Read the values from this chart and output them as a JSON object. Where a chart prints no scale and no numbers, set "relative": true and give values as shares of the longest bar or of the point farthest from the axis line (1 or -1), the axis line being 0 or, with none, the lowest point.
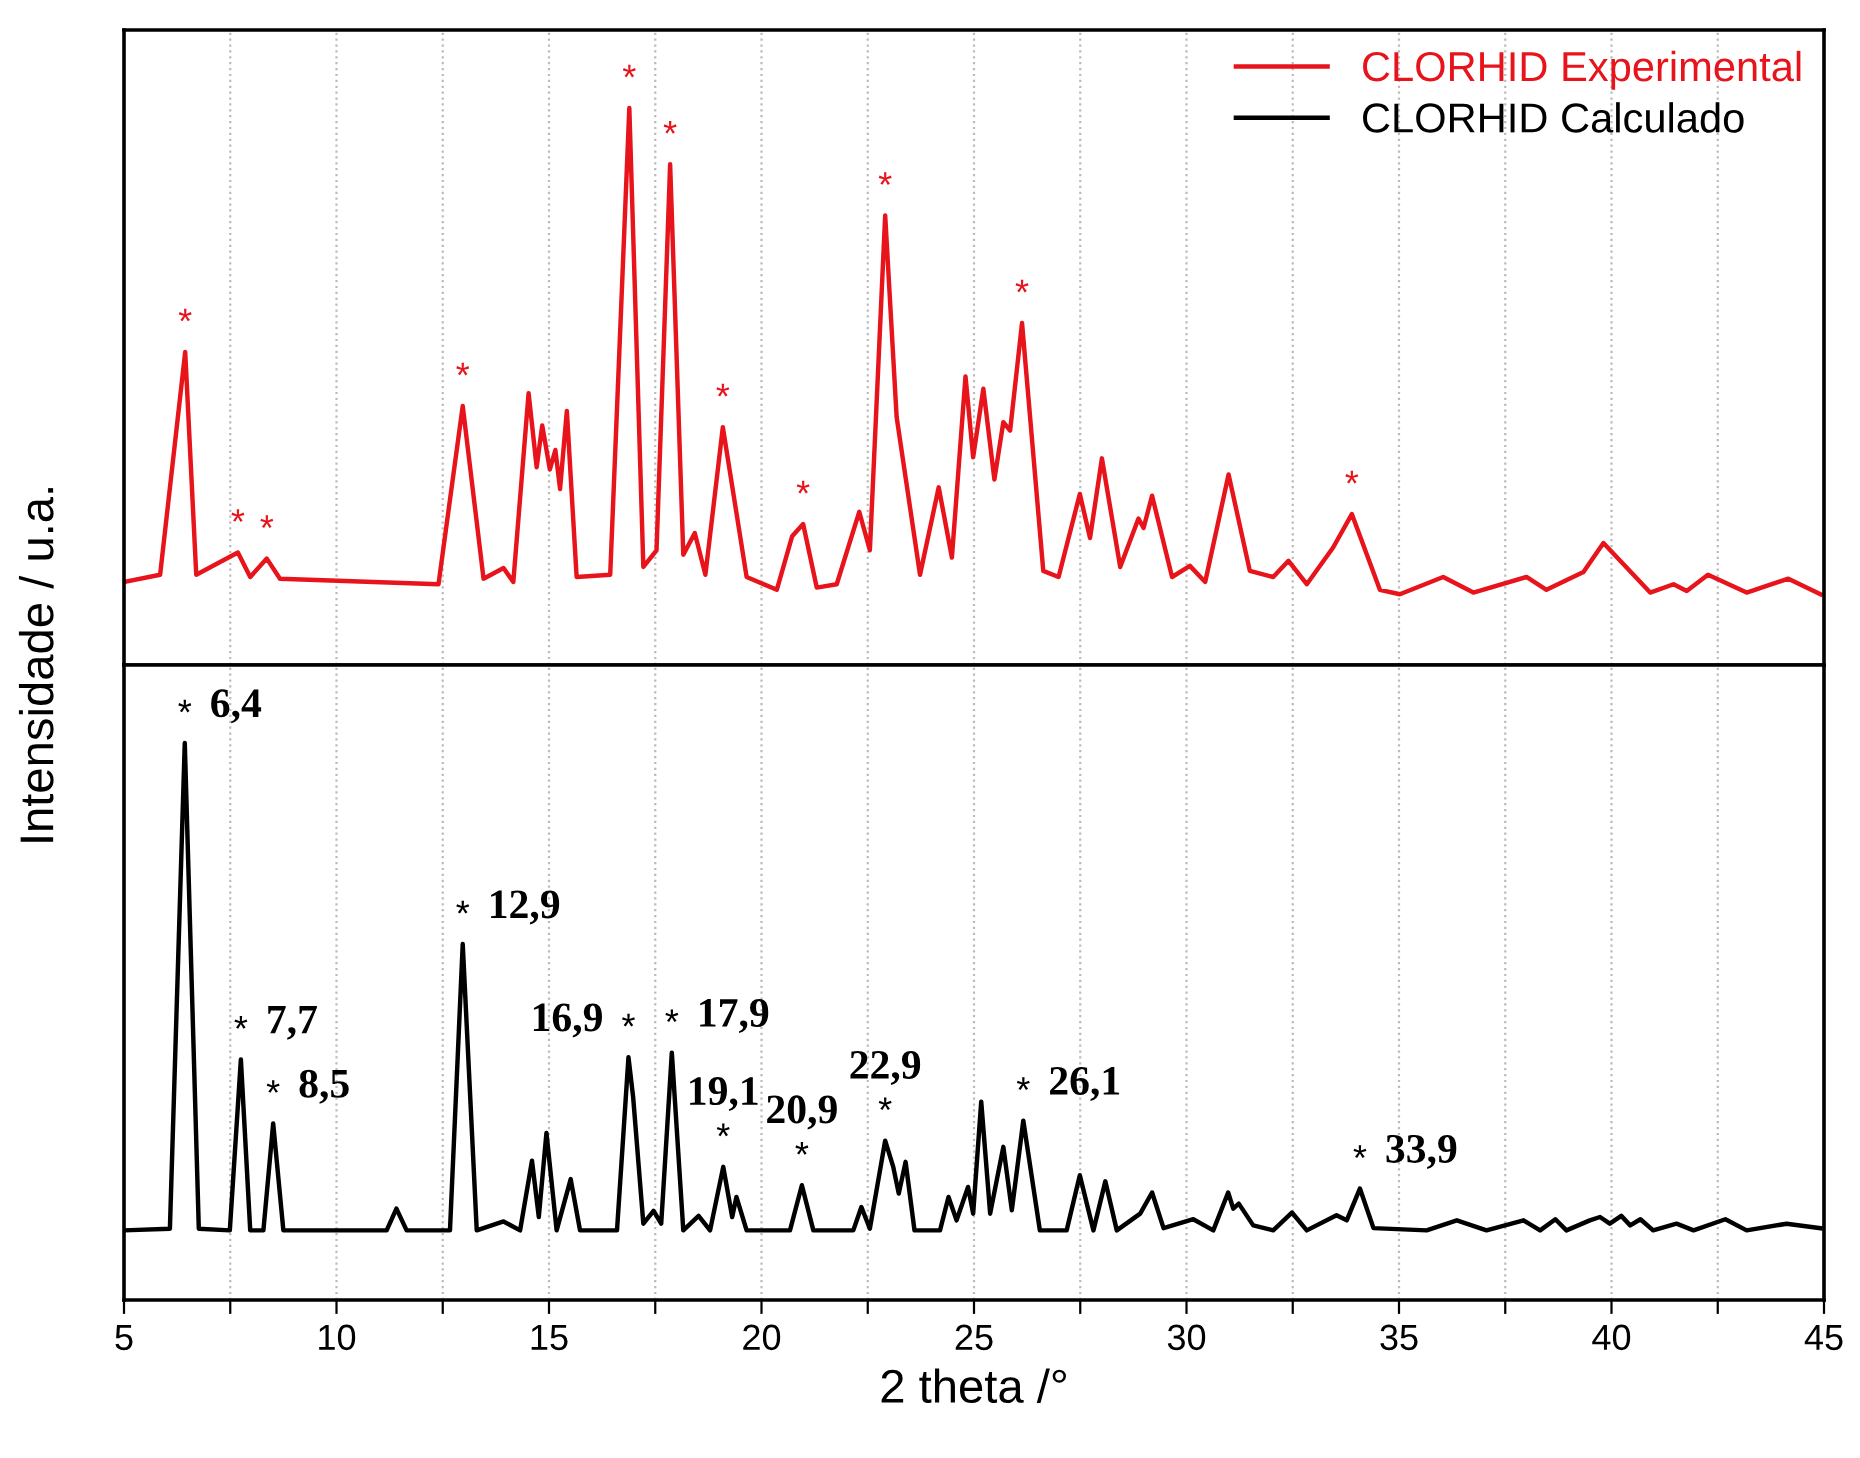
{
  "chart_data": [
    {
      "type": "line",
      "relative": true,
      "ylabel": "Intensidade / u.a.",
      "xlim": [
        5,
        45
      ],
      "xticks": [
        5,
        {
          "value": 7.5,
          "label": null
        },
        10,
        {
          "value": 12.5,
          "label": null
        },
        15,
        {
          "value": 17.5,
          "label": null
        },
        20,
        {
          "value": 22.5,
          "label": null
        },
        25,
        {
          "value": 27.5,
          "label": null
        },
        30,
        {
          "value": 32.5,
          "label": null
        },
        35,
        {
          "value": 37.5,
          "label": null
        },
        40,
        {
          "value": 42.5,
          "label": null
        },
        45
      ],
      "tick_labels": false,
      "grid": "x",
      "legend": "top right",
      "line_style": "solid",
      "marker": "none",
      "series": [
        {
          "name": "CLORHID Experimental",
          "color": "#e8141c",
          "x": [
            5,
            5.85,
            6.44,
            6.7,
            7.68,
            7.97,
            8.36,
            8.67,
            12.4,
            12.97,
            13.46,
            13.93,
            14.16,
            14.52,
            14.71,
            14.84,
            15.02,
            15.15,
            15.26,
            15.42,
            15.65,
            16.44,
            16.89,
            17.22,
            17.53,
            17.85,
            18.16,
            18.43,
            18.68,
            19.09,
            19.65,
            20.36,
            20.72,
            20.98,
            21.3,
            21.77,
            22.3,
            22.55,
            22.91,
            23.18,
            23.73,
            24.17,
            24.48,
            24.8,
            24.98,
            25.22,
            25.48,
            25.69,
            25.85,
            26.13,
            26.63,
            26.99,
            27.49,
            27.73,
            28.01,
            28.44,
            28.87,
            28.99,
            29.19,
            29.66,
            30.08,
            30.44,
            30.99,
            31.49,
            32.04,
            32.4,
            32.83,
            33.45,
            33.89,
            34.55,
            35.02,
            36.04,
            36.75,
            38.0,
            38.47,
            39.34,
            39.81,
            40.91,
            41.46,
            41.77,
            42.27,
            43.18,
            44.16,
            44.92
          ],
          "values": [
            0.149,
            0.162,
            0.562,
            0.162,
            0.202,
            0.158,
            0.191,
            0.155,
            0.145,
            0.465,
            0.155,
            0.174,
            0.149,
            0.488,
            0.355,
            0.43,
            0.351,
            0.386,
            0.316,
            0.456,
            0.158,
            0.162,
            1.0,
            0.176,
            0.206,
            0.899,
            0.198,
            0.237,
            0.162,
            0.427,
            0.158,
            0.135,
            0.231,
            0.253,
            0.139,
            0.145,
            0.275,
            0.206,
            0.807,
            0.445,
            0.162,
            0.319,
            0.193,
            0.518,
            0.373,
            0.496,
            0.333,
            0.436,
            0.421,
            0.614,
            0.169,
            0.158,
            0.307,
            0.228,
            0.371,
            0.176,
            0.263,
            0.246,
            0.304,
            0.158,
            0.178,
            0.149,
            0.342,
            0.169,
            0.158,
            0.187,
            0.145,
            0.211,
            0.271,
            0.135,
            0.127,
            0.158,
            0.13,
            0.158,
            0.135,
            0.167,
            0.219,
            0.13,
            0.145,
            0.133,
            0.162,
            0.13,
            0.155,
            0.127
          ]
        }
      ],
      "annotations": [
        {
          "text": "*",
          "x": 6.44,
          "y": 0.562
        },
        {
          "text": "*",
          "x": 7.68,
          "y": 0.202
        },
        {
          "text": "*",
          "x": 8.36,
          "y": 0.191
        },
        {
          "text": "*",
          "x": 12.97,
          "y": 0.465
        },
        {
          "text": "*",
          "x": 16.89,
          "y": 1.0
        },
        {
          "text": "*",
          "x": 17.85,
          "y": 0.899
        },
        {
          "text": "*",
          "x": 19.09,
          "y": 0.427
        },
        {
          "text": "*",
          "x": 20.98,
          "y": 0.253
        },
        {
          "text": "*",
          "x": 22.91,
          "y": 0.807
        },
        {
          "text": "*",
          "x": 26.13,
          "y": 0.614
        },
        {
          "text": "*",
          "x": 33.89,
          "y": 0.271
        }
      ]
    },
    {
      "type": "line",
      "relative": true,
      "xlabel": "2 theta /°",
      "xlim": [
        5,
        45
      ],
      "xticks": [
        5,
        {
          "value": 7.5,
          "label": null
        },
        10,
        {
          "value": 12.5,
          "label": null
        },
        15,
        {
          "value": 17.5,
          "label": null
        },
        20,
        {
          "value": 22.5,
          "label": null
        },
        25,
        {
          "value": 27.5,
          "label": null
        },
        30,
        {
          "value": 32.5,
          "label": null
        },
        35,
        {
          "value": 37.5,
          "label": null
        },
        40,
        {
          "value": 42.5,
          "label": null
        },
        45
      ],
      "tick_labels": "x",
      "grid": "x",
      "legend": "top right",
      "line_style": "solid",
      "marker": "none",
      "series": [
        {
          "name": "CLORHID Calculado",
          "color": "#000000",
          "x": [
            5,
            6.08,
            6.43,
            6.76,
            7.49,
            7.75,
            7.97,
            8.28,
            8.51,
            8.75,
            11.18,
            11.41,
            11.65,
            12.67,
            12.97,
            13.3,
            13.93,
            14.32,
            14.6,
            14.76,
            14.94,
            15.18,
            15.51,
            15.73,
            16.6,
            16.87,
            16.98,
            17.22,
            17.46,
            17.64,
            17.89,
            18.16,
            18.52,
            18.79,
            19.1,
            19.31,
            19.41,
            19.65,
            20.67,
            20.95,
            21.22,
            22.16,
            22.35,
            22.55,
            22.91,
            23.1,
            23.23,
            23.39,
            23.6,
            24.2,
            24.4,
            24.59,
            24.86,
            24.98,
            25.17,
            25.38,
            25.69,
            25.89,
            26.16,
            26.55,
            27.18,
            27.49,
            27.81,
            28.09,
            28.36,
            28.91,
            29.19,
            29.46,
            30.16,
            30.63,
            30.98,
            31.1,
            31.23,
            31.57,
            32.04,
            32.48,
            32.83,
            33.53,
            33.77,
            34.08,
            34.4,
            35.65,
            36.36,
            37.06,
            37.93,
            38.32,
            38.68,
            38.94,
            39.49,
            39.73,
            39.96,
            40.23,
            40.44,
            40.68,
            40.98,
            41.53,
            41.93,
            42.68,
            43.18,
            44.12,
            44.92
          ],
          "values": [
            0.125,
            0.128,
            1.0,
            0.128,
            0.125,
            0.432,
            0.125,
            0.125,
            0.317,
            0.125,
            0.125,
            0.164,
            0.125,
            0.125,
            0.639,
            0.125,
            0.141,
            0.125,
            0.25,
            0.149,
            0.3,
            0.125,
            0.217,
            0.125,
            0.125,
            0.436,
            0.364,
            0.137,
            0.16,
            0.137,
            0.444,
            0.125,
            0.151,
            0.125,
            0.239,
            0.149,
            0.185,
            0.125,
            0.125,
            0.206,
            0.125,
            0.125,
            0.167,
            0.128,
            0.286,
            0.239,
            0.191,
            0.248,
            0.125,
            0.125,
            0.185,
            0.143,
            0.203,
            0.155,
            0.356,
            0.155,
            0.275,
            0.161,
            0.322,
            0.125,
            0.125,
            0.224,
            0.125,
            0.213,
            0.125,
            0.155,
            0.193,
            0.129,
            0.145,
            0.125,
            0.193,
            0.164,
            0.173,
            0.134,
            0.125,
            0.157,
            0.125,
            0.152,
            0.143,
            0.2,
            0.129,
            0.125,
            0.143,
            0.125,
            0.143,
            0.125,
            0.145,
            0.125,
            0.143,
            0.149,
            0.137,
            0.151,
            0.134,
            0.145,
            0.125,
            0.137,
            0.125,
            0.145,
            0.125,
            0.137,
            0.129
          ]
        }
      ],
      "annotations": [
        {
          "text": "*",
          "x": 6.43,
          "y": 1.0
        },
        {
          "text": "6,4",
          "x": 6.43,
          "y": 1.0
        },
        {
          "text": "*",
          "x": 7.75,
          "y": 0.432
        },
        {
          "text": "7,7",
          "x": 7.75,
          "y": 0.432
        },
        {
          "text": "*",
          "x": 8.51,
          "y": 0.317
        },
        {
          "text": "8,5",
          "x": 8.51,
          "y": 0.317
        },
        {
          "text": "*",
          "x": 12.97,
          "y": 0.639
        },
        {
          "text": "12,9",
          "x": 12.97,
          "y": 0.639
        },
        {
          "text": "*",
          "x": 16.87,
          "y": 0.436
        },
        {
          "text": "16,9",
          "x": 16.87,
          "y": 0.436
        },
        {
          "text": "*",
          "x": 17.89,
          "y": 0.444
        },
        {
          "text": "17,9",
          "x": 17.89,
          "y": 0.444
        },
        {
          "text": "*",
          "x": 19.1,
          "y": 0.239
        },
        {
          "text": "19,1",
          "x": 19.1,
          "y": 0.239
        },
        {
          "text": "*",
          "x": 20.95,
          "y": 0.206
        },
        {
          "text": "20,9",
          "x": 20.95,
          "y": 0.206
        },
        {
          "text": "*",
          "x": 22.91,
          "y": 0.286
        },
        {
          "text": "22,9",
          "x": 22.91,
          "y": 0.286
        },
        {
          "text": "*",
          "x": 26.16,
          "y": 0.322
        },
        {
          "text": "26,1",
          "x": 26.16,
          "y": 0.322
        },
        {
          "text": "*",
          "x": 34.08,
          "y": 0.2
        },
        {
          "text": "33,9",
          "x": 34.08,
          "y": 0.2
        }
      ]
    }
  ]
}
